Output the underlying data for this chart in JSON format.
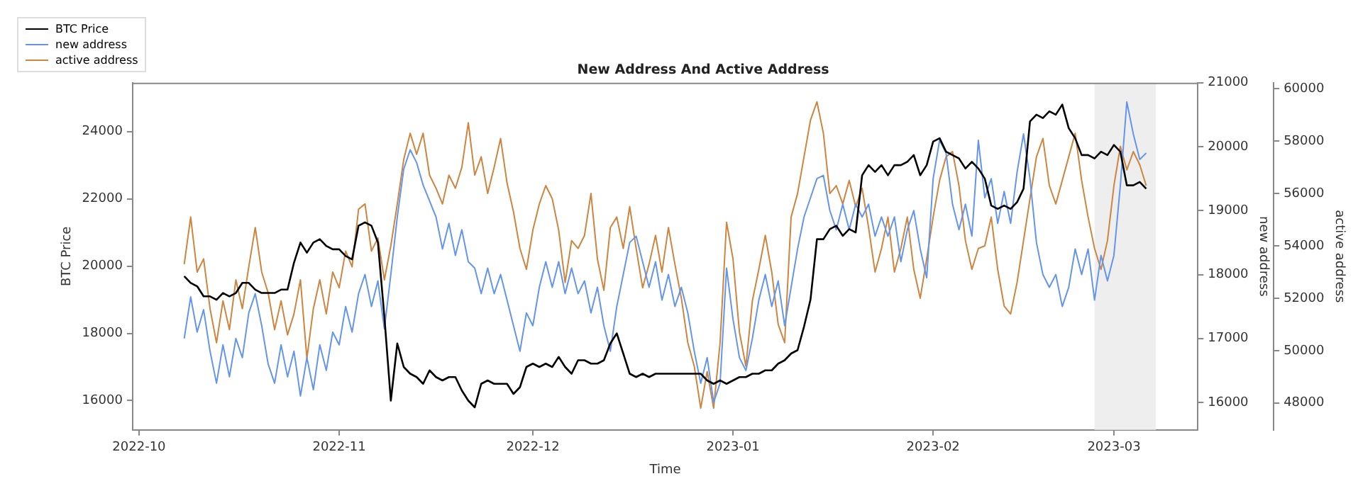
{
  "chart_data": {
    "type": "line",
    "title": "New Address And Active Address",
    "xlabel": "Time",
    "ylabel": "BTC Price",
    "y2label": "new address",
    "y3label": "active address",
    "x": [
      "2022-10-08",
      "2022-10-09",
      "2022-10-10",
      "2022-10-11",
      "2022-10-12",
      "2022-10-13",
      "2022-10-14",
      "2022-10-15",
      "2022-10-16",
      "2022-10-17",
      "2022-10-18",
      "2022-10-19",
      "2022-10-20",
      "2022-10-21",
      "2022-10-22",
      "2022-10-23",
      "2022-10-24",
      "2022-10-25",
      "2022-10-26",
      "2022-10-27",
      "2022-10-28",
      "2022-10-29",
      "2022-10-30",
      "2022-10-31",
      "2022-11-01",
      "2022-11-02",
      "2022-11-03",
      "2022-11-04",
      "2022-11-05",
      "2022-11-06",
      "2022-11-07",
      "2022-11-08",
      "2022-11-09",
      "2022-11-10",
      "2022-11-11",
      "2022-11-12",
      "2022-11-13",
      "2022-11-14",
      "2022-11-15",
      "2022-11-16",
      "2022-11-17",
      "2022-11-18",
      "2022-11-19",
      "2022-11-20",
      "2022-11-21",
      "2022-11-22",
      "2022-11-23",
      "2022-11-24",
      "2022-11-25",
      "2022-11-26",
      "2022-11-27",
      "2022-11-28",
      "2022-11-29",
      "2022-11-30",
      "2022-12-01",
      "2022-12-02",
      "2022-12-03",
      "2022-12-04",
      "2022-12-05",
      "2022-12-06",
      "2022-12-07",
      "2022-12-08",
      "2022-12-09",
      "2022-12-10",
      "2022-12-11",
      "2022-12-12",
      "2022-12-13",
      "2022-12-14",
      "2022-12-15",
      "2022-12-16",
      "2022-12-17",
      "2022-12-18",
      "2022-12-19",
      "2022-12-20",
      "2022-12-21",
      "2022-12-22",
      "2022-12-23",
      "2022-12-24",
      "2022-12-25",
      "2022-12-26",
      "2022-12-27",
      "2022-12-28",
      "2022-12-29",
      "2022-12-30",
      "2022-12-31",
      "2023-01-01",
      "2023-01-02",
      "2023-01-03",
      "2023-01-04",
      "2023-01-05",
      "2023-01-06",
      "2023-01-07",
      "2023-01-08",
      "2023-01-09",
      "2023-01-10",
      "2023-01-11",
      "2023-01-12",
      "2023-01-13",
      "2023-01-14",
      "2023-01-15",
      "2023-01-16",
      "2023-01-17",
      "2023-01-18",
      "2023-01-19",
      "2023-01-20",
      "2023-01-21",
      "2023-01-22",
      "2023-01-23",
      "2023-01-24",
      "2023-01-25",
      "2023-01-26",
      "2023-01-27",
      "2023-01-28",
      "2023-01-29",
      "2023-01-30",
      "2023-01-31",
      "2023-02-01",
      "2023-02-02",
      "2023-02-03",
      "2023-02-04",
      "2023-02-05",
      "2023-02-06",
      "2023-02-07",
      "2023-02-08",
      "2023-02-09",
      "2023-02-10",
      "2023-02-11",
      "2023-02-12",
      "2023-02-13",
      "2023-02-14",
      "2023-02-15",
      "2023-02-16",
      "2023-02-17",
      "2023-02-18",
      "2023-02-19",
      "2023-02-20",
      "2023-02-21",
      "2023-02-22",
      "2023-02-23",
      "2023-02-24",
      "2023-02-25",
      "2023-02-26",
      "2023-02-27",
      "2023-02-28",
      "2023-03-01",
      "2023-03-02",
      "2023-03-03",
      "2023-03-04",
      "2023-03-05",
      "2023-03-06"
    ],
    "series": [
      {
        "name": "BTC Price",
        "color": "#000000",
        "axis": "y",
        "values": [
          19700,
          19500,
          19400,
          19100,
          19100,
          19000,
          19200,
          19100,
          19200,
          19500,
          19500,
          19300,
          19200,
          19200,
          19200,
          19300,
          19300,
          20100,
          20700,
          20400,
          20700,
          20800,
          20600,
          20500,
          20500,
          20300,
          20200,
          21200,
          21300,
          21200,
          20700,
          18500,
          16000,
          17700,
          17000,
          16800,
          16700,
          16500,
          16900,
          16700,
          16600,
          16700,
          16700,
          16300,
          16000,
          15800,
          16500,
          16600,
          16500,
          16500,
          16500,
          16200,
          16400,
          17000,
          17100,
          17000,
          17100,
          17000,
          17300,
          17000,
          16800,
          17200,
          17200,
          17100,
          17100,
          17200,
          17700,
          18000,
          17400,
          16800,
          16700,
          16800,
          16700,
          16800,
          16800,
          16800,
          16800,
          16800,
          16800,
          16800,
          16800,
          16600,
          16500,
          16600,
          16500,
          16600,
          16700,
          16700,
          16800,
          16800,
          16900,
          16900,
          17100,
          17200,
          17400,
          17500,
          18200,
          19000,
          20800,
          20800,
          21100,
          21200,
          20900,
          21100,
          21000,
          22700,
          23000,
          22800,
          23000,
          22700,
          23000,
          23000,
          23100,
          23300,
          22700,
          23000,
          23700,
          23800,
          23400,
          23300,
          23200,
          22900,
          23100,
          22900,
          22600,
          21800,
          21700,
          21800,
          21700,
          21900,
          22300,
          24300,
          24500,
          24400,
          24600,
          24500,
          24800,
          24100,
          23800,
          23300,
          23300,
          23200,
          23400,
          23300,
          23600,
          23400,
          22400,
          22400,
          22500,
          22300
        ]
      },
      {
        "name": "new address",
        "color": "#6495ed",
        "axis": "y2",
        "values": [
          17000,
          17650,
          17100,
          17450,
          16800,
          16300,
          16900,
          16400,
          17000,
          16700,
          17400,
          17700,
          17200,
          16600,
          16300,
          16900,
          16400,
          16800,
          16100,
          16700,
          16200,
          16900,
          16500,
          17100,
          16900,
          17500,
          17100,
          17700,
          18000,
          17500,
          17900,
          17150,
          18000,
          18900,
          19650,
          19950,
          19750,
          19400,
          19150,
          18900,
          18400,
          18800,
          18300,
          18700,
          18200,
          18100,
          17700,
          18100,
          17700,
          18000,
          17600,
          17200,
          16800,
          17400,
          17200,
          17800,
          18200,
          17800,
          18200,
          17700,
          18100,
          17700,
          17900,
          17400,
          17800,
          17200,
          16800,
          17500,
          18000,
          18500,
          18600,
          18200,
          17800,
          18200,
          17600,
          18000,
          17500,
          17800,
          17400,
          16800,
          16300,
          16700,
          16000,
          16300,
          18100,
          17300,
          16700,
          16500,
          17000,
          17600,
          18000,
          17500,
          17900,
          17200,
          17800,
          18400,
          18900,
          19200,
          19500,
          19550,
          19000,
          18700,
          19100,
          18700,
          19100,
          18900,
          19100,
          18600,
          18900,
          18600,
          18900,
          18200,
          18700,
          19000,
          18400,
          17950,
          19500,
          20100,
          19900,
          19100,
          18700,
          19100,
          18600,
          20100,
          19200,
          19500,
          18800,
          19300,
          18800,
          19600,
          20200,
          19500,
          18500,
          18000,
          17800,
          18000,
          17500,
          17800,
          18400,
          18000,
          18400,
          17600,
          18300,
          17900,
          18300,
          19400,
          20700,
          20200,
          19800,
          19900
        ]
      },
      {
        "name": "active address",
        "color": "#cd853f",
        "axis": "y3",
        "values": [
          53300,
          55100,
          53000,
          53500,
          51600,
          50300,
          51900,
          50800,
          52700,
          51600,
          53200,
          54700,
          53000,
          52200,
          50800,
          51900,
          50600,
          51400,
          52700,
          49700,
          51600,
          52700,
          51400,
          53000,
          52400,
          53800,
          53200,
          55400,
          55600,
          53800,
          54300,
          52700,
          54000,
          55600,
          57300,
          58300,
          57500,
          58300,
          56700,
          56200,
          55600,
          56700,
          56200,
          57000,
          58700,
          56700,
          57400,
          56000,
          57000,
          58100,
          56400,
          55300,
          53900,
          53100,
          54600,
          55600,
          56300,
          55800,
          54600,
          52600,
          54200,
          53900,
          54400,
          56000,
          53500,
          52300,
          54700,
          55100,
          53900,
          55500,
          53900,
          52400,
          53300,
          54400,
          53000,
          54700,
          53300,
          52000,
          50300,
          49400,
          47800,
          49200,
          47800,
          50300,
          54900,
          53500,
          50700,
          49400,
          51900,
          53100,
          54400,
          53000,
          51000,
          50300,
          55100,
          56000,
          57400,
          58800,
          59500,
          58300,
          56000,
          56300,
          55600,
          56500,
          55500,
          56200,
          54700,
          53000,
          53900,
          55100,
          53000,
          53900,
          55100,
          53100,
          52000,
          53500,
          55100,
          56500,
          57400,
          57600,
          56300,
          54200,
          53100,
          53900,
          54000,
          55100,
          53100,
          51700,
          51400,
          52600,
          54200,
          55800,
          57400,
          58100,
          56300,
          55600,
          56500,
          57400,
          58300,
          56500,
          55100,
          53900,
          53100,
          54200,
          56300,
          57800,
          56900,
          57600,
          57100,
          56300
        ]
      }
    ],
    "xlim": [
      "2022-09-30",
      "2023-03-14"
    ],
    "xticks": [
      {
        "value": "2022-10-01",
        "label": "2022-10"
      },
      {
        "value": "2022-11-01",
        "label": "2022-11"
      },
      {
        "value": "2022-12-01",
        "label": "2022-12"
      },
      {
        "value": "2023-01-01",
        "label": "2023-01"
      },
      {
        "value": "2023-02-01",
        "label": "2023-02"
      },
      {
        "value": "2023-03-01",
        "label": "2023-03"
      }
    ],
    "ylim": [
      15130,
      25450
    ],
    "yticks": [
      16000,
      18000,
      20000,
      22000,
      24000
    ],
    "y2lim": [
      15570,
      21000
    ],
    "y2ticks": [
      16000,
      17000,
      18000,
      19000,
      20000,
      21000
    ],
    "y3lim": [
      46970,
      60230
    ],
    "y3ticks": [
      48000,
      50000,
      52000,
      54000,
      56000,
      58000,
      60000
    ],
    "bands": [
      {
        "axis": "x",
        "from": "2023-02-26",
        "to": "2023-03-07T12:00",
        "color": "#eeeeee"
      }
    ],
    "legend": "top left"
  }
}
